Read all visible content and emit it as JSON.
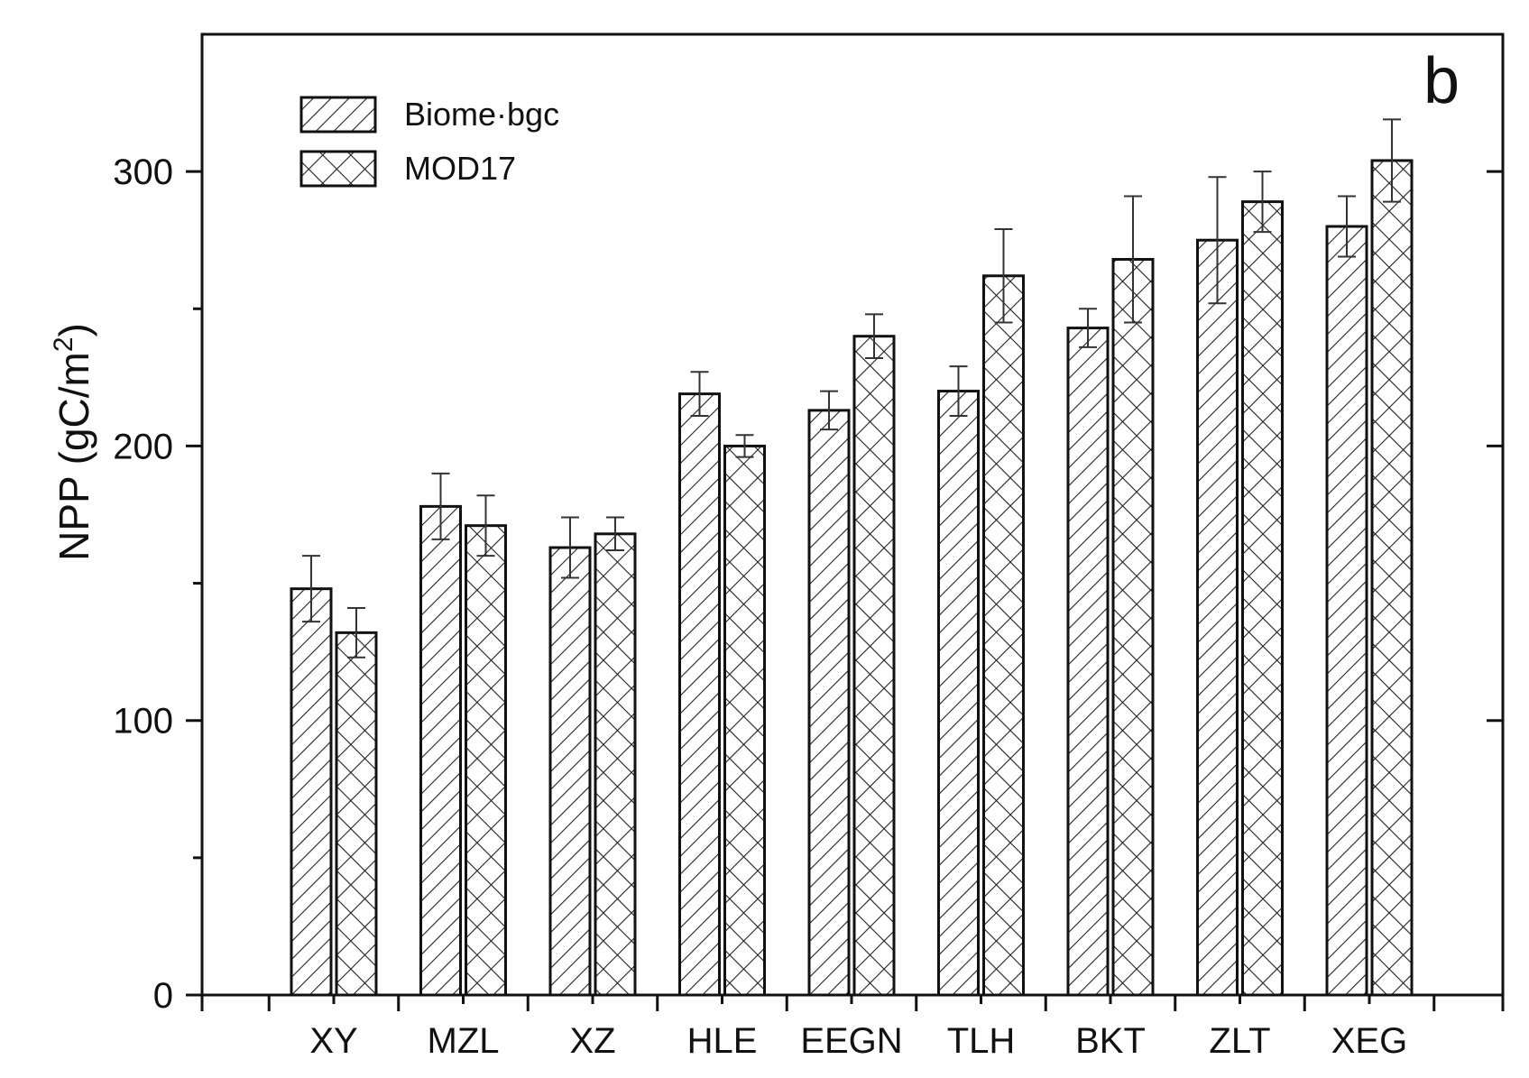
{
  "chart_data": {
    "type": "bar",
    "panel_label": "b",
    "ylabel": "NPP (gC/m",
    "ylabel_superscript": "2",
    "ylabel_close": ")",
    "xlabel": "",
    "ylim": [
      0,
      350
    ],
    "yticks": [
      0,
      100,
      200,
      300
    ],
    "minor_yticks": [
      50,
      150,
      250
    ],
    "grid": false,
    "legend_position": "top-left",
    "categories": [
      "XY",
      "MZL",
      "XZ",
      "HLE",
      "EEGN",
      "TLH",
      "BKT",
      "ZLT",
      "XEG"
    ],
    "series": [
      {
        "name": "Biome-bgc",
        "pattern": "diagonal-hatch",
        "values": [
          148,
          178,
          163,
          219,
          213,
          220,
          243,
          275,
          280
        ],
        "errors": [
          12,
          12,
          11,
          8,
          7,
          9,
          7,
          23,
          11
        ]
      },
      {
        "name": "MOD17",
        "pattern": "crosshatch",
        "values": [
          132,
          171,
          168,
          200,
          240,
          262,
          268,
          289,
          304
        ],
        "errors": [
          9,
          11,
          6,
          4,
          8,
          17,
          23,
          11,
          15
        ]
      }
    ],
    "legend_labels": [
      "Biome·bgc",
      "MOD17"
    ],
    "colors": {
      "bar_fill": "#ffffff",
      "stroke": "#111111",
      "background": "#ffffff"
    }
  }
}
